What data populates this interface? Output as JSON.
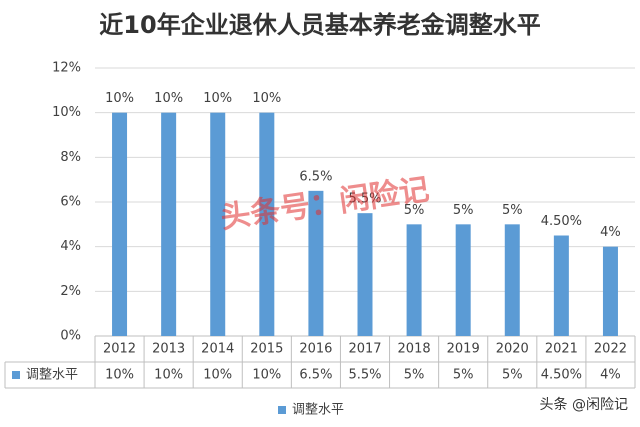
{
  "chart_data": {
    "type": "bar",
    "title": "近10年企业退休人员基本养老金调整水平",
    "categories": [
      "2012",
      "2013",
      "2014",
      "2015",
      "2016",
      "2017",
      "2018",
      "2019",
      "2020",
      "2021",
      "2022"
    ],
    "series": [
      {
        "name": "调整水平",
        "color": "#5b9bd5",
        "values": [
          10,
          10,
          10,
          10,
          6.5,
          5.5,
          5,
          5,
          5,
          4.5,
          4
        ],
        "value_labels": [
          "10%",
          "10%",
          "10%",
          "10%",
          "6.5%",
          "5.5%",
          "5%",
          "5%",
          "5%",
          "4.50%",
          "4%"
        ]
      }
    ],
    "ylim": [
      0,
      12
    ],
    "yticks": [
      {
        "value": 0,
        "label": "0%"
      },
      {
        "value": 2,
        "label": "2%"
      },
      {
        "value": 4,
        "label": "4%"
      },
      {
        "value": 6,
        "label": "6%"
      },
      {
        "value": 8,
        "label": "8%"
      },
      {
        "value": 10,
        "label": "10%"
      },
      {
        "value": 12,
        "label": "12%"
      }
    ],
    "grid": true,
    "watermark": "头条号：闲险记",
    "source": "头条 @闲险记"
  }
}
